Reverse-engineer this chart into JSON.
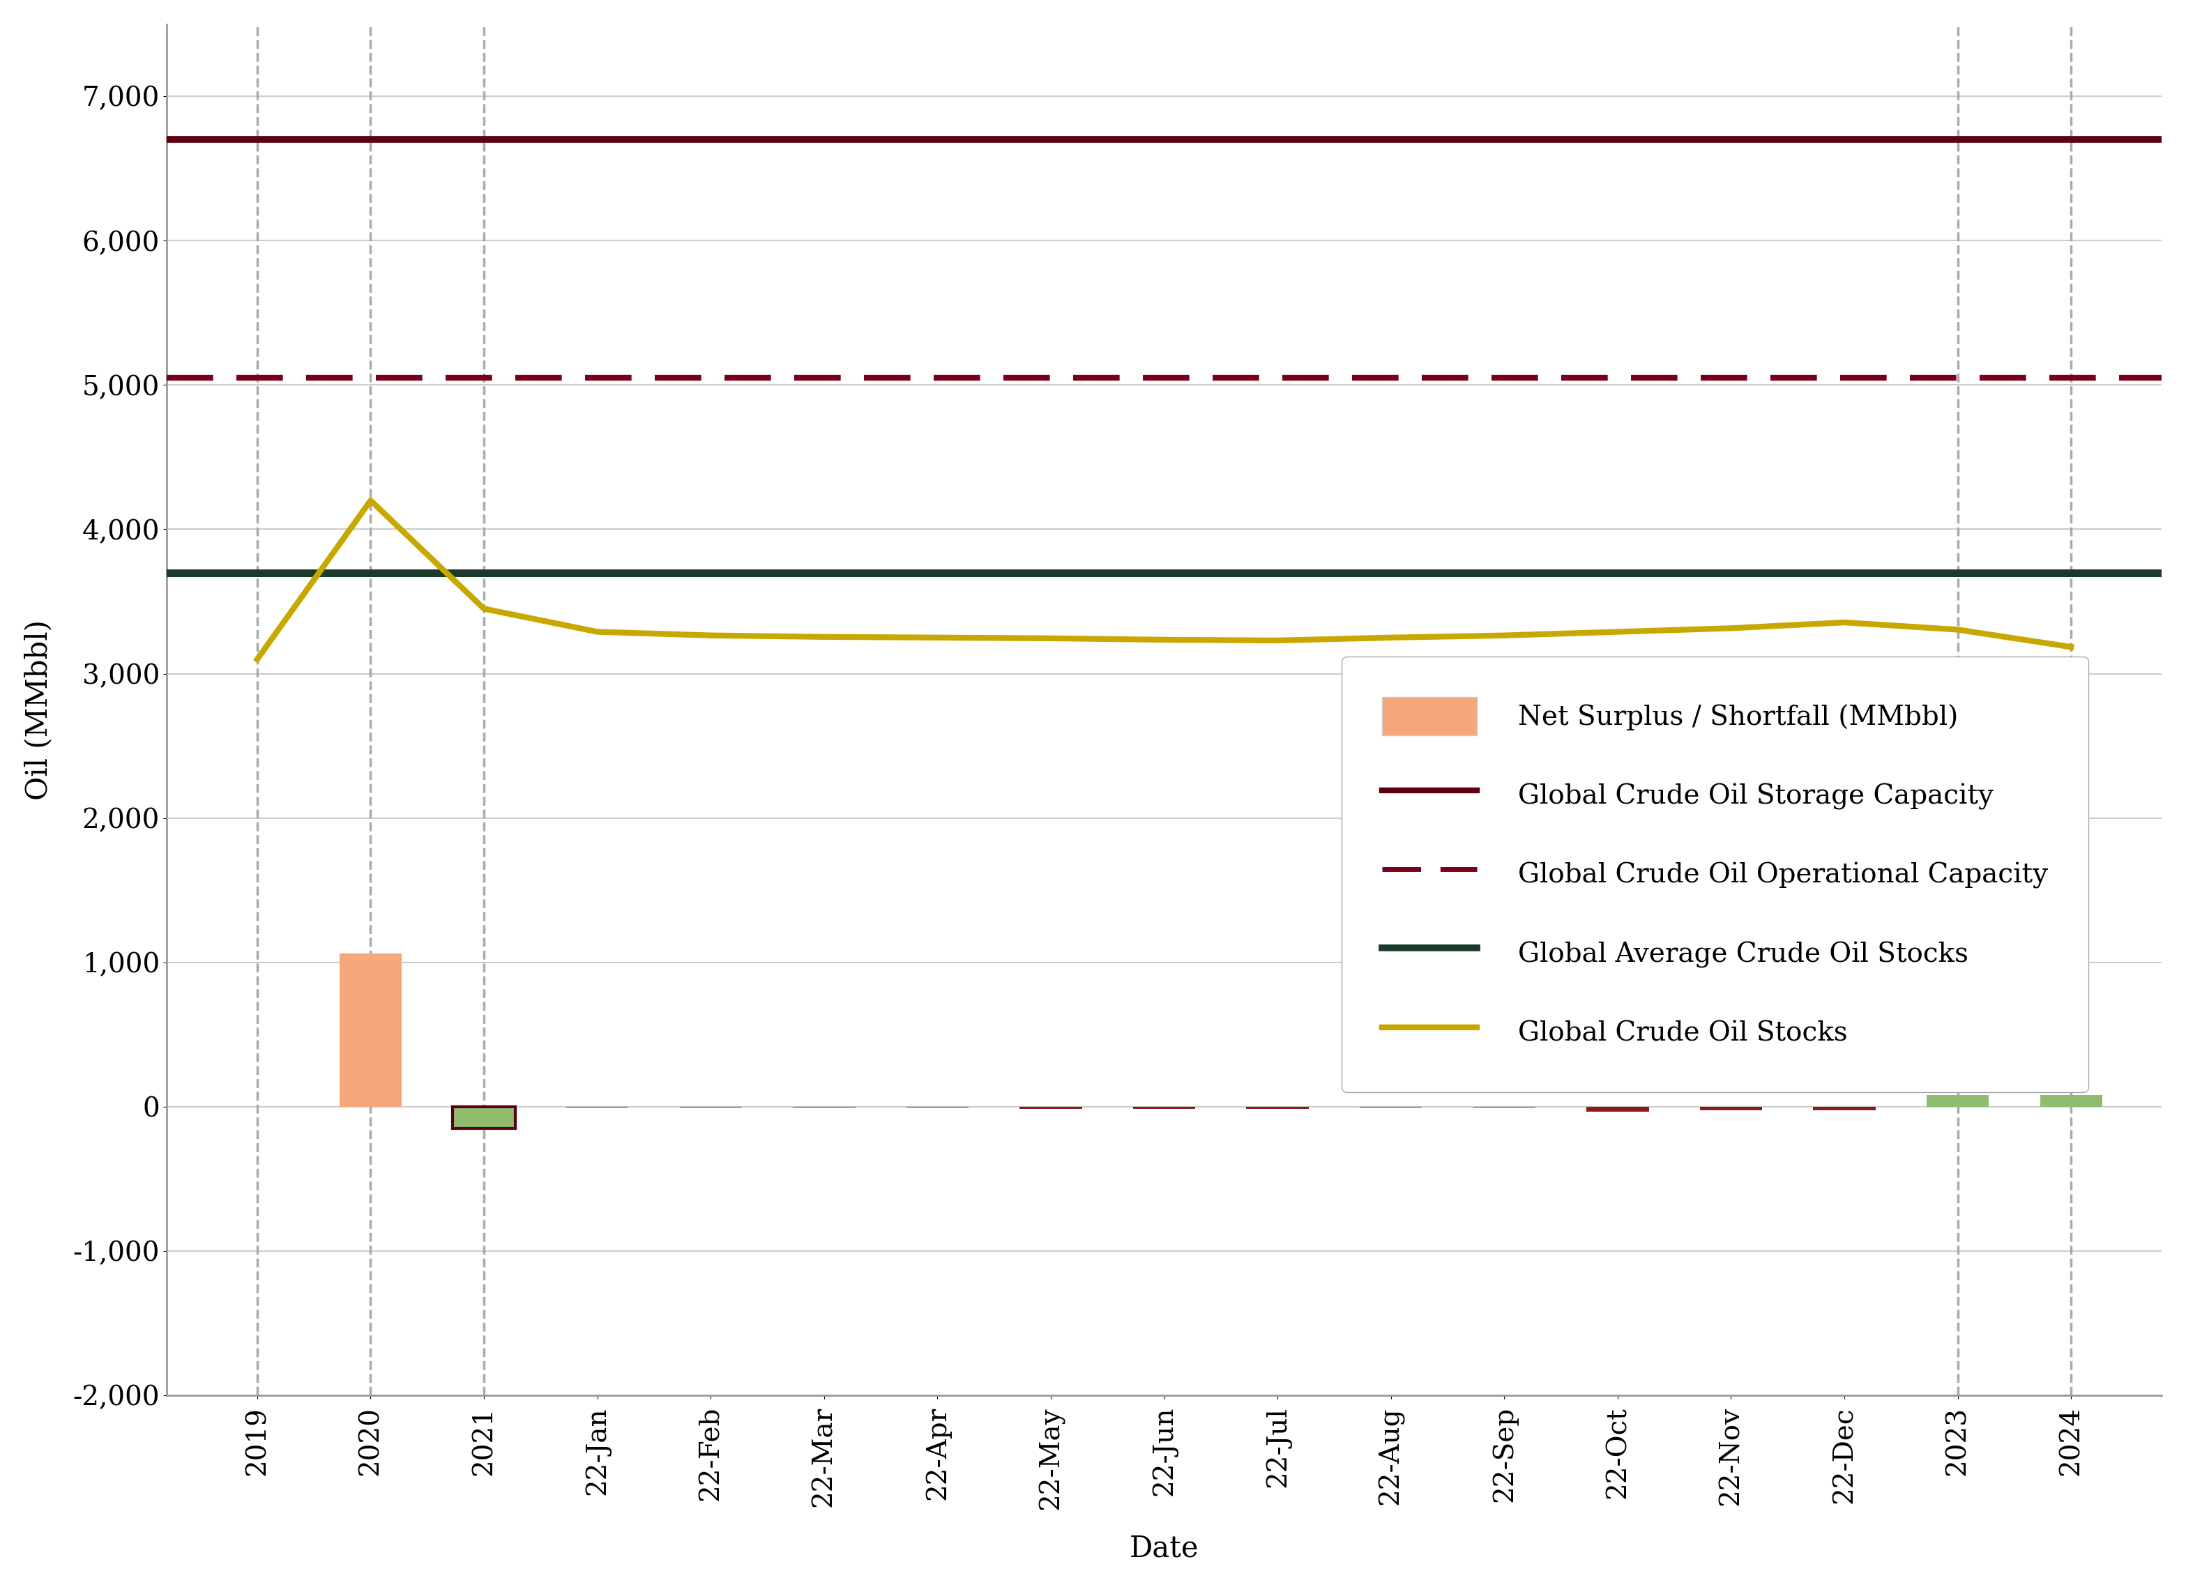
{
  "title": "",
  "ylabel": "Oil (MMbbl)",
  "xlabel": "Date",
  "ylim": [
    -2000,
    7500
  ],
  "yticks": [
    -2000,
    -1000,
    0,
    1000,
    2000,
    3000,
    4000,
    5000,
    6000,
    7000
  ],
  "capacity_line": 6700,
  "operational_line": 5050,
  "avg_stocks_line": 3700,
  "x_labels": [
    "2019",
    "2020",
    "2021",
    "22-Jan",
    "22-Feb",
    "22-Mar",
    "22-Apr",
    "22-May",
    "22-Jun",
    "22-Jul",
    "22-Aug",
    "22-Sep",
    "22-Oct",
    "22-Nov",
    "22-Dec",
    "2023",
    "2024"
  ],
  "dashed_verticals": [
    0,
    1,
    2,
    15,
    16
  ],
  "oil_stocks_values": [
    3100,
    4200,
    3450,
    3290,
    3265,
    3255,
    3250,
    3245,
    3235,
    3230,
    3250,
    3265,
    3290,
    3315,
    3355,
    3305,
    3185
  ],
  "bar_values": [
    0,
    1060,
    -150,
    -8,
    -8,
    -8,
    -8,
    -15,
    -15,
    -15,
    -8,
    -8,
    -35,
    -25,
    -25,
    80,
    80
  ],
  "bar_colors_pos": "#f4a87c",
  "bar_color_2021": "#8fbc6f",
  "bar_color_red": "#8b1a1a",
  "bar_color_green": "#8fbc6f",
  "capacity_color": "#5c0011",
  "operational_color": "#7a0019",
  "avg_color": "#1a3a2a",
  "stocks_color": "#c8a800",
  "background_color": "#ffffff",
  "grid_color": "#cccccc",
  "axis_color": "#999999",
  "label_fontsize": 30,
  "tick_fontsize": 28,
  "legend_fontsize": 28
}
